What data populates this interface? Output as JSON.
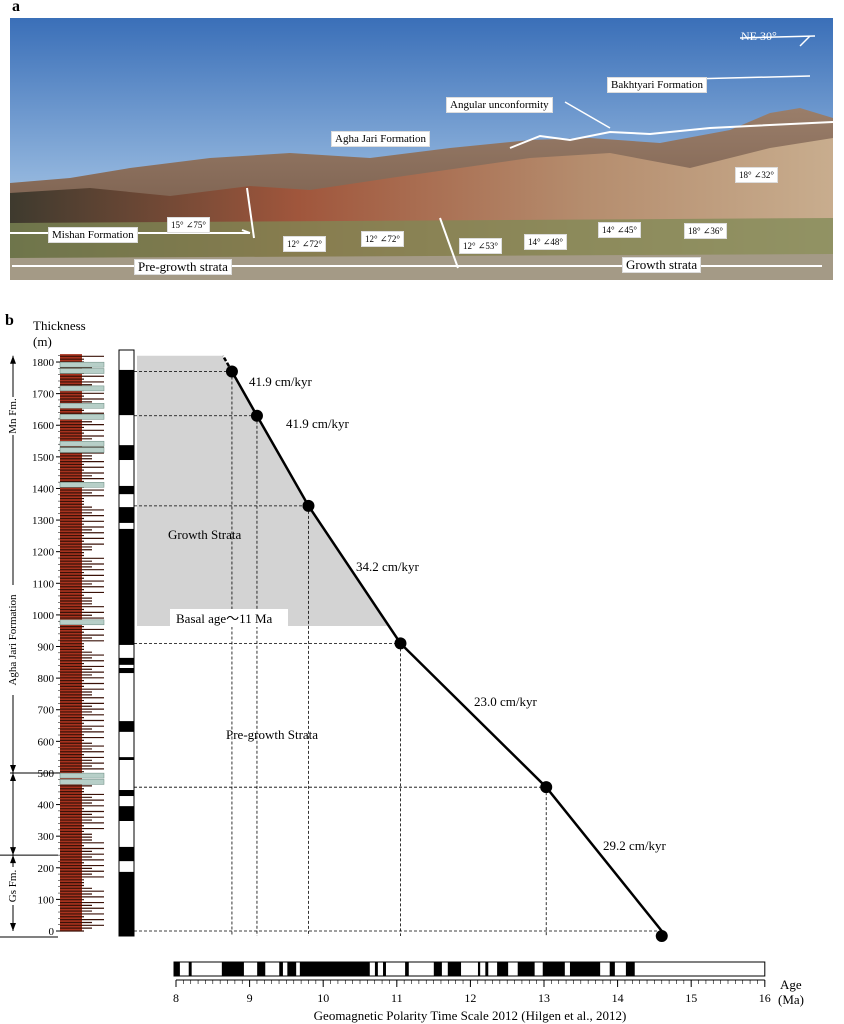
{
  "panel_a": {
    "letter": "a",
    "north_label": "NE 30°",
    "labels": {
      "bakhtyari": "Bakhtyari Formation",
      "unconformity": "Angular unconformity",
      "agha_jari": "Agha Jari Formation",
      "mishan": "Mishan Formation",
      "pre_growth": "Pre-growth strata",
      "growth": "Growth  strata"
    },
    "attitudes": [
      "15° ∠75°",
      "12° ∠72°",
      "12° ∠72°",
      "12° ∠53°",
      "14° ∠48°",
      "14° ∠45°",
      "18° ∠36°",
      "18° ∠32°"
    ]
  },
  "panel_b": {
    "letter": "b",
    "y_title": "Thickness",
    "y_unit": "(m)",
    "formations": [
      "Agha Jari Formation",
      "Mn Fm.",
      "Gs Fm."
    ],
    "region_labels": {
      "growth": "Growth Strata",
      "basal": "Basal age～11 Ma",
      "pre_growth": "Pre-growth Strata"
    },
    "x_title": "Age",
    "x_unit": "(Ma)",
    "caption": "Geomagnetic Polarity Time Scale 2012 (Hilgen et al., 2012)"
  },
  "chart_data": {
    "type": "line",
    "xlabel": "Age (Ma)",
    "ylabel": "Thickness (m)",
    "xlim": [
      8,
      16
    ],
    "ylim": [
      0,
      1800
    ],
    "x_ticks": [
      8,
      9,
      10,
      11,
      12,
      13,
      14,
      15,
      16
    ],
    "y_ticks": [
      0,
      100,
      200,
      300,
      400,
      500,
      600,
      700,
      800,
      900,
      1000,
      1100,
      1200,
      1300,
      1400,
      1500,
      1600,
      1700,
      1800
    ],
    "points": [
      {
        "age": 14.6,
        "thickness": 0
      },
      {
        "age": 13.03,
        "thickness": 455
      },
      {
        "age": 11.05,
        "thickness": 910
      },
      {
        "age": 9.8,
        "thickness": 1345
      },
      {
        "age": 9.1,
        "thickness": 1630
      },
      {
        "age": 8.76,
        "thickness": 1770
      }
    ],
    "rates": [
      "29.2 cm/kyr",
      "23.0 cm/kyr",
      "34.2 cm/kyr",
      "41.9 cm/kyr",
      "41.9 cm/kyr"
    ],
    "growth_strata_base_thickness": 965,
    "growth_strata_top_thickness": 1820,
    "local_polarity_normal_intervals_m": [
      [
        1632,
        1775
      ],
      [
        1490,
        1537
      ],
      [
        1382,
        1408
      ],
      [
        1291,
        1341
      ],
      [
        905,
        1272
      ],
      [
        842,
        864
      ],
      [
        816,
        832
      ],
      [
        630,
        664
      ],
      [
        541,
        550
      ],
      [
        427,
        446
      ],
      [
        348,
        395
      ],
      [
        221,
        266
      ],
      [
        0,
        187
      ]
    ],
    "gpts_normal_intervals_ma": [
      [
        8.0,
        8.08
      ],
      [
        8.2,
        8.24
      ],
      [
        8.65,
        8.95
      ],
      [
        9.13,
        9.24
      ],
      [
        9.43,
        9.48
      ],
      [
        9.54,
        9.66
      ],
      [
        9.71,
        10.66
      ],
      [
        10.73,
        10.77
      ],
      [
        10.84,
        10.88
      ],
      [
        11.14,
        11.19
      ],
      [
        11.53,
        11.64
      ],
      [
        11.72,
        11.9
      ],
      [
        12.13,
        12.16
      ],
      [
        12.23,
        12.27
      ],
      [
        12.39,
        12.54
      ],
      [
        12.67,
        12.9
      ],
      [
        13.01,
        13.31
      ],
      [
        13.38,
        13.79
      ],
      [
        13.92,
        13.99
      ],
      [
        14.14,
        14.26
      ]
    ],
    "formation_boundaries_m": [
      500,
      240
    ],
    "colors": {
      "line": "#000000",
      "growth_fill": "#d3d3d3",
      "log_red": "#a8321e",
      "log_gray": "#b7cfc8"
    }
  }
}
